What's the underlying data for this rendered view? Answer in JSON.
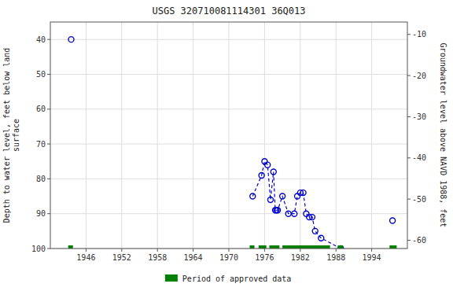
{
  "chart_data": {
    "type": "scatter",
    "title": "USGS 320710081114301 36Q013",
    "ylabel": "Depth to water level, feet below land\nsurface",
    "y2label": "Groundwater level above NAVD 1988, feet",
    "xlim": [
      1940,
      2000
    ],
    "xticks": [
      1946,
      1952,
      1958,
      1964,
      1970,
      1976,
      1982,
      1988,
      1994
    ],
    "ylim": [
      100,
      35
    ],
    "yticks": [
      40,
      50,
      60,
      70,
      80,
      90,
      100
    ],
    "y2lim": [
      -62,
      -7
    ],
    "y2ticks": [
      -10,
      -20,
      -30,
      -40,
      -50,
      -60
    ],
    "grid": true,
    "legend": "bottom",
    "x": [
      1943.5,
      1974.0,
      1975.5,
      1976.0,
      1976.5,
      1977.0,
      1977.5,
      1977.8,
      1978.0,
      1978.2,
      1979.0,
      1980.0,
      1981.0,
      1981.5,
      1982.0,
      1982.5,
      1983.0,
      1983.5,
      1984.0,
      1984.5,
      1985.5,
      1988.8,
      1997.5
    ],
    "series": [
      {
        "type": "line",
        "line_style": "dashed",
        "marker": "none",
        "color": "#0000cc",
        "values": [
          null,
          85,
          79,
          75,
          76,
          86,
          78,
          89,
          89,
          89,
          85,
          90,
          90,
          85,
          84,
          84,
          90,
          91,
          91,
          95,
          97,
          100,
          null
        ]
      },
      {
        "type": "scatter",
        "marker": "open-circle",
        "color": "#0000cc",
        "values": [
          40,
          85,
          79,
          75,
          76,
          86,
          78,
          89,
          89,
          89,
          85,
          90,
          90,
          85,
          84,
          84,
          90,
          91,
          91,
          95,
          97,
          100,
          92
        ]
      },
      {
        "type": "range",
        "name": "Period of approved data",
        "color": "#008000",
        "y": 100,
        "starts": [
          1943.0,
          1973.5,
          1975.0,
          1976.8,
          1979.0,
          1988.3,
          1997.0
        ],
        "ends": [
          1943.8,
          1974.3,
          1976.3,
          1978.5,
          1987.0,
          1989.2,
          1998.2
        ]
      }
    ]
  }
}
